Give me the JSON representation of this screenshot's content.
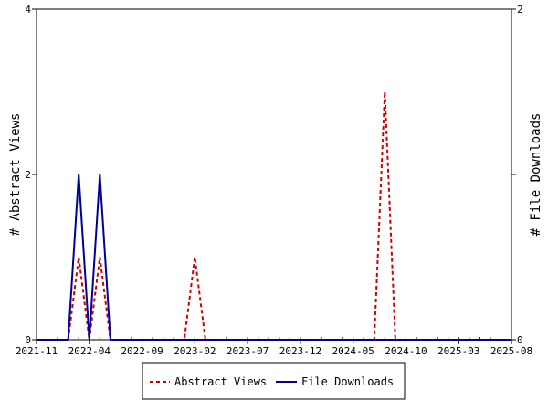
{
  "chart_data": {
    "type": "line",
    "x": [
      "2021-11",
      "2021-12",
      "2022-01",
      "2022-02",
      "2022-03",
      "2022-04",
      "2022-05",
      "2022-06",
      "2022-07",
      "2022-08",
      "2022-09",
      "2022-10",
      "2022-11",
      "2022-12",
      "2023-01",
      "2023-02",
      "2023-03",
      "2023-04",
      "2023-05",
      "2023-06",
      "2023-07",
      "2023-08",
      "2023-09",
      "2023-10",
      "2023-11",
      "2023-12",
      "2024-01",
      "2024-02",
      "2024-03",
      "2024-04",
      "2024-05",
      "2024-06",
      "2024-07",
      "2024-08",
      "2024-09",
      "2024-10",
      "2024-11",
      "2024-12",
      "2025-01",
      "2025-02",
      "2025-03",
      "2025-04",
      "2025-05",
      "2025-06",
      "2025-07",
      "2025-08"
    ],
    "x_ticks": [
      "2021-11",
      "2022-04",
      "2022-09",
      "2023-02",
      "2023-07",
      "2023-12",
      "2024-05",
      "2024-10",
      "2025-03",
      "2025-08"
    ],
    "series": [
      {
        "name": "Abstract Views",
        "axis": "left",
        "color": "#cc0000",
        "dash": "dashed",
        "values": [
          0,
          0,
          0,
          0,
          1,
          0,
          1,
          0,
          0,
          0,
          0,
          0,
          0,
          0,
          0,
          1,
          0,
          0,
          0,
          0,
          0,
          0,
          0,
          0,
          0,
          0,
          0,
          0,
          0,
          0,
          0,
          0,
          0,
          3,
          0,
          0,
          0,
          0,
          0,
          0,
          0,
          0,
          0,
          0,
          0,
          0
        ]
      },
      {
        "name": "File Downloads",
        "axis": "right",
        "color": "#000099",
        "dash": "solid",
        "values": [
          0,
          0,
          0,
          0,
          1,
          0,
          1,
          0,
          0,
          0,
          0,
          0,
          0,
          0,
          0,
          0,
          0,
          0,
          0,
          0,
          0,
          0,
          0,
          0,
          0,
          0,
          0,
          0,
          0,
          0,
          0,
          0,
          0,
          0,
          0,
          0,
          0,
          0,
          0,
          0,
          0,
          0,
          0,
          0,
          0,
          0
        ]
      }
    ],
    "ylabel_left": "# Abstract Views",
    "ylabel_right": "# File Downloads",
    "ylim_left": [
      0,
      4
    ],
    "ylim_right": [
      0,
      2
    ],
    "yticks_left": [
      "0",
      "2",
      "4"
    ],
    "yticks_right": [
      "0",
      "1",
      "2"
    ],
    "yticks_right_labeled": [
      "0",
      "2"
    ],
    "legend_position": "bottom-center"
  },
  "legend": {
    "abstract_views": "Abstract Views",
    "file_downloads": "File Downloads"
  }
}
